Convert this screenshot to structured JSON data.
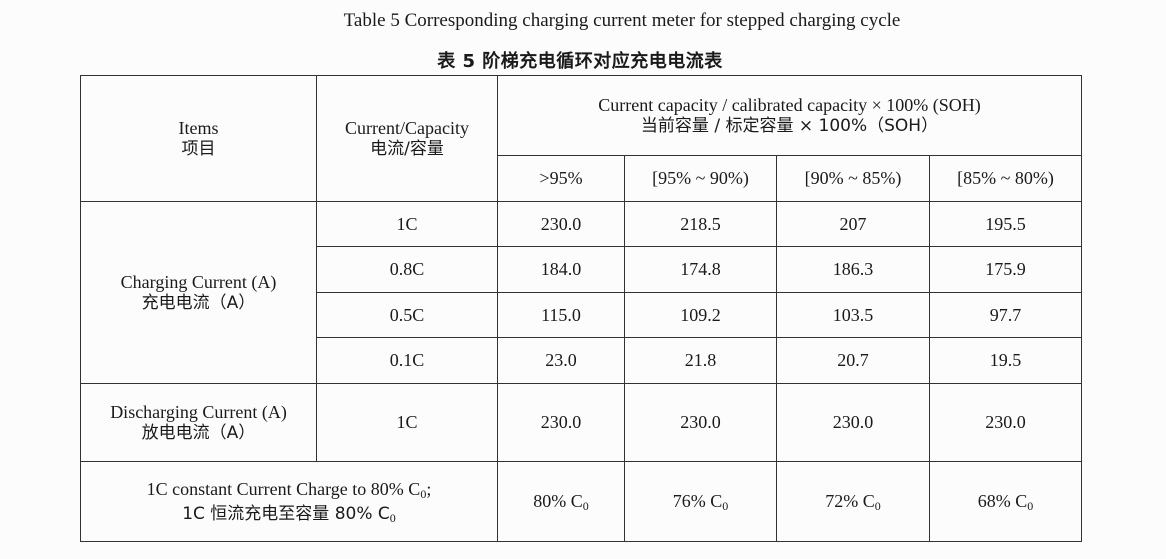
{
  "title_en": "Table 5 Corresponding charging current meter for stepped charging cycle",
  "title_zh": "表 5  阶梯充电循环对应充电电流表",
  "header": {
    "items_en": "Items",
    "items_zh": "项目",
    "current_capacity_en": "Current/Capacity",
    "current_capacity_zh": "电流/容量",
    "soh_en": "Current capacity / calibrated capacity × 100% (SOH)",
    "soh_zh": "当前容量 / 标定容量 × 100%（SOH）",
    "ranges": [
      ">95%",
      "[95% ~ 90%)",
      "[90% ~ 85%)",
      "[85% ~ 80%)"
    ]
  },
  "charging": {
    "label_en": "Charging Current (A)",
    "label_zh": "充电电流（A）",
    "rows": [
      {
        "rate": "1C",
        "values": [
          "230.0",
          "218.5",
          "207",
          "195.5"
        ]
      },
      {
        "rate": "0.8C",
        "values": [
          "184.0",
          "174.8",
          "186.3",
          "175.9"
        ]
      },
      {
        "rate": "0.5C",
        "values": [
          "115.0",
          "109.2",
          "103.5",
          "97.7"
        ]
      },
      {
        "rate": "0.1C",
        "values": [
          "23.0",
          "21.8",
          "20.7",
          "19.5"
        ]
      }
    ]
  },
  "discharging": {
    "label_en": "Discharging Current (A)",
    "label_zh": "放电电流（A）",
    "rate": "1C",
    "values": [
      "230.0",
      "230.0",
      "230.0",
      "230.0"
    ]
  },
  "constant": {
    "label_en": "1C constant Current Charge to 80% C",
    "label_en_sub": "0",
    "label_en_tail": ";",
    "label_zh": "1C 恒流充电至容量 80% C",
    "label_zh_sub": "0",
    "values": [
      "80% C",
      "76% C",
      "72% C",
      "68% C"
    ],
    "value_sub": "0"
  }
}
